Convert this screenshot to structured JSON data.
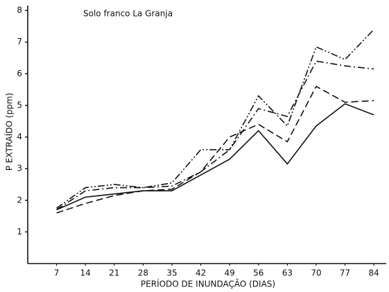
{
  "chart_data": {
    "type": "line",
    "title": "Solo franco La Granja",
    "x_label": "PERÍODO DE INUNDAÇÃO (DIAS)",
    "y_label": "P EXTRAÍDO (ppm)",
    "x": [
      7,
      14,
      21,
      28,
      35,
      42,
      49,
      56,
      63,
      70,
      77,
      84
    ],
    "xlim": [
      0,
      87
    ],
    "xticks": [
      7,
      14,
      21,
      28,
      35,
      42,
      49,
      56,
      63,
      70,
      77,
      84
    ],
    "ylim": [
      0,
      8.2
    ],
    "yticks": [
      1,
      2,
      3,
      4,
      5,
      6,
      7,
      8
    ],
    "grid": false,
    "series": [
      {
        "color": "#111111",
        "dash": "solid",
        "values": [
          1.7,
          2.1,
          2.2,
          2.3,
          2.3,
          2.8,
          3.3,
          4.2,
          3.15,
          4.35,
          5.05,
          4.7
        ]
      },
      {
        "color": "#111111",
        "dash": "dashed",
        "values": [
          1.6,
          1.9,
          2.15,
          2.3,
          2.35,
          2.9,
          4.0,
          4.4,
          3.85,
          5.6,
          5.1,
          5.15
        ]
      },
      {
        "color": "#111111",
        "dash": "dashdot",
        "values": [
          1.7,
          2.3,
          2.4,
          2.4,
          2.45,
          2.9,
          3.6,
          4.9,
          4.65,
          6.4,
          6.25,
          6.15
        ]
      },
      {
        "color": "#111111",
        "dash": "dashdotdot",
        "values": [
          1.75,
          2.4,
          2.5,
          2.4,
          2.55,
          3.6,
          3.6,
          5.3,
          4.35,
          6.85,
          6.45,
          7.4
        ]
      }
    ]
  }
}
